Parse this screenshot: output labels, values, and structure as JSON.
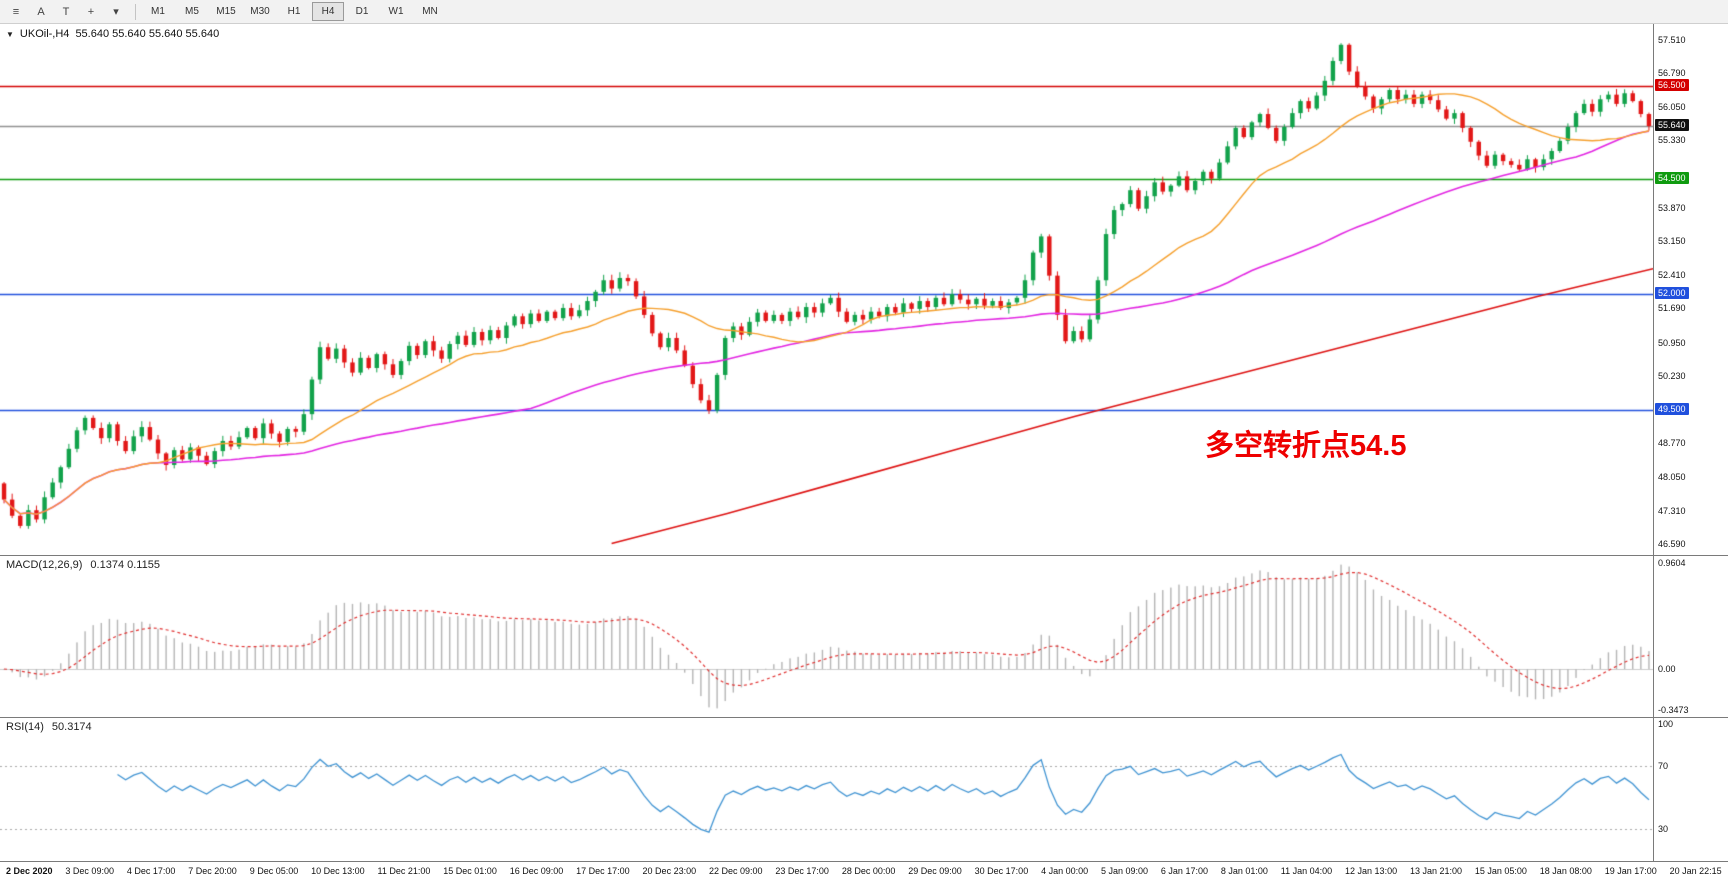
{
  "toolbar": {
    "icon_buttons": [
      {
        "name": "chart-list-icon",
        "glyph": "≡"
      },
      {
        "name": "cursor-mode-icon",
        "glyph": "A"
      },
      {
        "name": "text-tool-icon",
        "glyph": "T"
      },
      {
        "name": "crosshair-icon",
        "glyph": "+"
      },
      {
        "name": "tools-dropdown-icon",
        "glyph": "▾"
      }
    ],
    "timeframes": [
      "M1",
      "M5",
      "M15",
      "M30",
      "H1",
      "H4",
      "D1",
      "W1",
      "MN"
    ],
    "active_timeframe": "H4"
  },
  "chart": {
    "collapse_icon": "▼",
    "title": "UKOil-,H4",
    "ohlc_text": "55.640 55.640 55.640 55.640",
    "current_price": "55.640",
    "annotation": {
      "text": "多空转折点54.5",
      "color": "#ee0000"
    }
  },
  "price_scale": {
    "ticks": [
      "57.510",
      "56.790",
      "56.050",
      "55.330",
      "53.870",
      "53.150",
      "52.410",
      "51.690",
      "50.950",
      "50.230",
      "48.770",
      "48.050",
      "47.310",
      "46.590"
    ]
  },
  "levels": [
    {
      "value": 56.5,
      "label": "56.500",
      "color": "#d40000",
      "text_color": "#ffffff"
    },
    {
      "value": 55.64,
      "label": "55.640",
      "color": "#111111",
      "line_color": "#909090",
      "text_color": "#ffffff"
    },
    {
      "value": 54.5,
      "label": "54.500",
      "color": "#0f9b0f",
      "text_color": "#ffffff"
    },
    {
      "value": 52.0,
      "label": "52.000",
      "color": "#2050dd",
      "text_color": "#ffffff"
    },
    {
      "value": 49.5,
      "label": "49.500",
      "color": "#2050dd",
      "text_color": "#ffffff"
    }
  ],
  "chart_data": {
    "type": "candlestick",
    "symbol": "UKOil-",
    "timeframe": "H4",
    "price_min_visible": 46.59,
    "price_max_visible": 57.51,
    "first_open": 47.9,
    "closes": [
      47.55,
      47.2,
      46.98,
      47.32,
      47.12,
      47.6,
      47.92,
      48.25,
      48.65,
      49.05,
      49.32,
      49.1,
      48.88,
      49.18,
      48.82,
      48.6,
      48.92,
      49.12,
      48.85,
      48.55,
      48.3,
      48.62,
      48.42,
      48.68,
      48.5,
      48.32,
      48.6,
      48.82,
      48.7,
      48.9,
      49.1,
      48.88,
      49.2,
      48.98,
      48.8,
      49.08,
      49.02,
      49.4,
      50.15,
      50.85,
      50.6,
      50.82,
      50.52,
      50.3,
      50.62,
      50.4,
      50.7,
      50.48,
      50.25,
      50.55,
      50.88,
      50.68,
      50.98,
      50.78,
      50.6,
      50.92,
      51.1,
      50.9,
      51.18,
      51.0,
      51.22,
      51.05,
      51.32,
      51.52,
      51.35,
      51.58,
      51.42,
      51.62,
      51.48,
      51.7,
      51.52,
      51.65,
      51.85,
      52.05,
      52.3,
      52.12,
      52.35,
      52.28,
      51.95,
      51.55,
      51.15,
      50.85,
      51.05,
      50.78,
      50.45,
      50.05,
      49.7,
      49.48,
      50.25,
      51.05,
      51.3,
      51.12,
      51.4,
      51.6,
      51.42,
      51.55,
      51.42,
      51.62,
      51.5,
      51.72,
      51.6,
      51.8,
      51.92,
      51.62,
      51.4,
      51.55,
      51.45,
      51.62,
      51.52,
      51.72,
      51.6,
      51.8,
      51.68,
      51.85,
      51.72,
      51.92,
      51.78,
      52.0,
      51.88,
      51.78,
      51.9,
      51.75,
      51.85,
      51.7,
      51.82,
      51.92,
      52.3,
      52.9,
      53.25,
      52.4,
      51.55,
      50.98,
      51.2,
      51.02,
      51.45,
      52.3,
      53.3,
      53.82,
      53.95,
      54.25,
      53.85,
      54.12,
      54.42,
      54.22,
      54.35,
      54.55,
      54.25,
      54.45,
      54.65,
      54.5,
      54.85,
      55.2,
      55.6,
      55.4,
      55.72,
      55.9,
      55.6,
      55.32,
      55.62,
      55.92,
      56.18,
      56.02,
      56.3,
      56.62,
      57.05,
      57.4,
      56.82,
      56.5,
      56.28,
      56.02,
      56.22,
      56.42,
      56.22,
      56.32,
      56.12,
      56.32,
      56.2,
      56.0,
      55.8,
      55.92,
      55.6,
      55.3,
      55.0,
      54.78,
      55.02,
      54.88,
      54.8,
      54.7,
      54.92,
      54.75,
      54.92,
      55.1,
      55.32,
      55.62,
      55.92,
      56.12,
      55.95,
      56.22,
      56.32,
      56.12,
      56.35,
      56.18,
      55.9,
      55.64
    ],
    "x_labels": [
      "2 Dec 2020",
      "3 Dec 09:00",
      "4 Dec 17:00",
      "7 Dec 20:00",
      "9 Dec 05:00",
      "10 Dec 13:00",
      "11 Dec 21:00",
      "15 Dec 01:00",
      "16 Dec 09:00",
      "17 Dec 17:00",
      "20 Dec 23:00",
      "22 Dec 09:00",
      "23 Dec 17:00",
      "28 Dec 00:00",
      "29 Dec 09:00",
      "30 Dec 17:00",
      "4 Jan 00:00",
      "5 Jan 09:00",
      "6 Jan 17:00",
      "8 Jan 01:00",
      "11 Jan 04:00",
      "12 Jan 13:00",
      "13 Jan 21:00",
      "15 Jan 05:00",
      "18 Jan 08:00",
      "19 Jan 17:00",
      "20 Jan 22:15"
    ],
    "up_color": "#12a24b",
    "down_color": "#e21717",
    "ma_orange_period": 20,
    "ma_orange_color": "#f59f2c",
    "ma_magenta_period": 66,
    "ma_magenta_color": "#e226e2",
    "red_ma_color": "#dd1111",
    "red_ma_points": [
      [
        0.37,
        46.6
      ],
      [
        0.44,
        47.25
      ],
      [
        0.51,
        47.95
      ],
      [
        0.58,
        48.65
      ],
      [
        0.65,
        49.35
      ],
      [
        0.72,
        50.0
      ],
      [
        0.79,
        50.65
      ],
      [
        0.86,
        51.3
      ],
      [
        0.93,
        51.95
      ],
      [
        1.0,
        52.55
      ]
    ],
    "macd": {
      "label": "MACD(12,26,9)",
      "values_text": "0.1374 0.1155",
      "fast": 12,
      "slow": 26,
      "signal": 9,
      "axis_top": "0.9604",
      "axis_zero": "0.00",
      "axis_bottom": "-0.3473",
      "hist_color": "#b5b5b5",
      "signal_color": "#e03030"
    },
    "rsi": {
      "label": "RSI(14)",
      "value_text": "50.3174",
      "period": 14,
      "axis": [
        "100",
        "70",
        "30"
      ],
      "levels": [
        70,
        30
      ],
      "line_color": "#3f93d2"
    }
  }
}
